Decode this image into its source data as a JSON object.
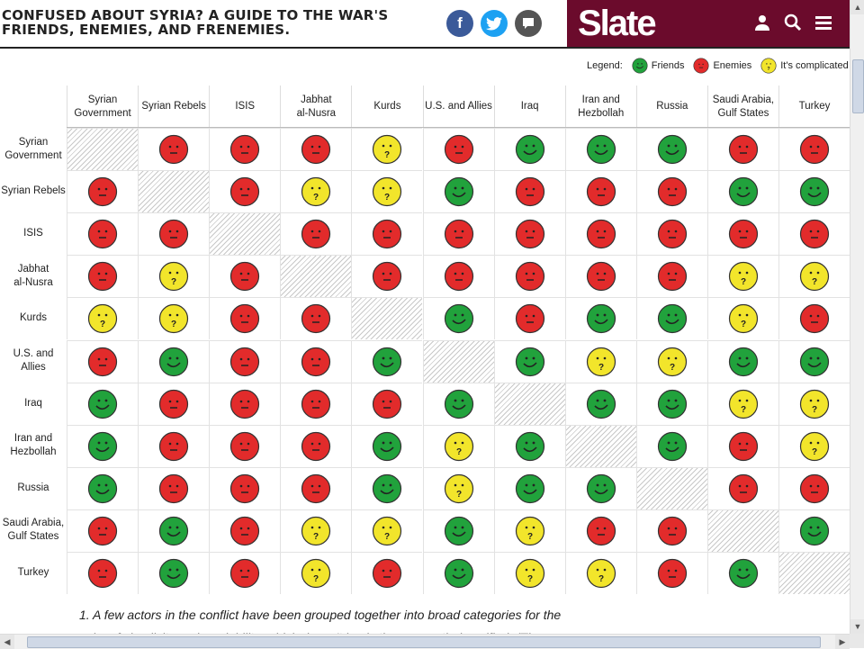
{
  "header": {
    "headline": "CONFUSED ABOUT SYRIA? A GUIDE TO THE WAR'S FRIENDS, ENEMIES, AND FRENEMIES.",
    "brand": "Slate",
    "social_icons": [
      "facebook-icon",
      "twitter-icon",
      "comment-icon"
    ],
    "brand_icons": [
      "user-icon",
      "search-icon",
      "menu-icon"
    ]
  },
  "legend": {
    "title": "Legend:",
    "items": [
      {
        "key": "F",
        "label": "Friends"
      },
      {
        "key": "E",
        "label": "Enemies"
      },
      {
        "key": "C",
        "label": "It's complicated"
      }
    ]
  },
  "colors": {
    "F": "#21a23c",
    "E": "#e22b2b",
    "C": "#f2e52b",
    "brand": "#6b0b2c"
  },
  "actors": [
    "Syrian Government",
    "Syrian Rebels",
    "ISIS",
    "Jabhat al-Nusra",
    "Kurds",
    "U.S. and Allies",
    "Iraq",
    "Iran and Hezbollah",
    "Russia",
    "Saudi Arabia, Gulf States",
    "Turkey"
  ],
  "column_labels": [
    [
      "Syrian",
      "Government"
    ],
    [
      "Syrian Rebels"
    ],
    [
      "ISIS"
    ],
    [
      "Jabhat",
      "al-Nusra"
    ],
    [
      "Kurds"
    ],
    [
      "U.S. and Allies"
    ],
    [
      "Iraq"
    ],
    [
      "Iran and",
      "Hezbollah"
    ],
    [
      "Russia"
    ],
    [
      "Saudi Arabia,",
      "Gulf States"
    ],
    [
      "Turkey"
    ]
  ],
  "row_labels": [
    [
      "Syrian",
      "Government"
    ],
    [
      "Syrian Rebels"
    ],
    [
      "ISIS"
    ],
    [
      "Jabhat",
      "al-Nusra"
    ],
    [
      "Kurds"
    ],
    [
      "U.S. and Allies"
    ],
    [
      "Iraq"
    ],
    [
      "Iran and",
      "Hezbollah"
    ],
    [
      "Russia"
    ],
    [
      "Saudi Arabia,",
      "Gulf States"
    ],
    [
      "Turkey"
    ]
  ],
  "matrix": [
    [
      "-",
      "E",
      "E",
      "E",
      "C",
      "E",
      "F",
      "F",
      "F",
      "E",
      "E"
    ],
    [
      "E",
      "-",
      "E",
      "C",
      "C",
      "F",
      "E",
      "E",
      "E",
      "F",
      "F"
    ],
    [
      "E",
      "E",
      "-",
      "E",
      "E",
      "E",
      "E",
      "E",
      "E",
      "E",
      "E"
    ],
    [
      "E",
      "C",
      "E",
      "-",
      "E",
      "E",
      "E",
      "E",
      "E",
      "C",
      "C"
    ],
    [
      "C",
      "C",
      "E",
      "E",
      "-",
      "F",
      "E",
      "F",
      "F",
      "C",
      "E"
    ],
    [
      "E",
      "F",
      "E",
      "E",
      "F",
      "-",
      "F",
      "C",
      "C",
      "F",
      "F"
    ],
    [
      "F",
      "E",
      "E",
      "E",
      "E",
      "F",
      "-",
      "F",
      "F",
      "C",
      "C"
    ],
    [
      "F",
      "E",
      "E",
      "E",
      "F",
      "C",
      "F",
      "-",
      "F",
      "E",
      "C"
    ],
    [
      "F",
      "E",
      "E",
      "E",
      "F",
      "C",
      "F",
      "F",
      "-",
      "E",
      "E"
    ],
    [
      "E",
      "F",
      "E",
      "C",
      "C",
      "F",
      "C",
      "E",
      "E",
      "-",
      "F"
    ],
    [
      "E",
      "F",
      "E",
      "C",
      "E",
      "F",
      "C",
      "C",
      "E",
      "F",
      "-"
    ]
  ],
  "footnote": "1. A few actors in the conflict have been grouped together into broad categories for the",
  "footnote_cut": "sake of simplicity and readability, which doesn't imply they are entirely unified. (The"
}
